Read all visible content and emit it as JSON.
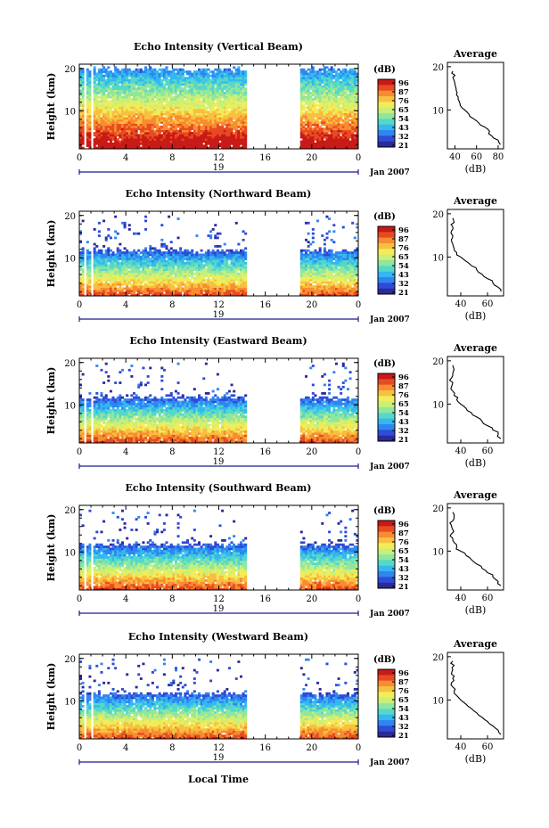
{
  "colorbar": {
    "unit": "(dB)",
    "ticks": [
      "96",
      "87",
      "76",
      "65",
      "54",
      "43",
      "32",
      "21"
    ],
    "colors": [
      "#2a2a9a",
      "#2f4bd8",
      "#2f86f0",
      "#33b8f0",
      "#55d8c8",
      "#8fe6a0",
      "#c8ef78",
      "#f2ec58",
      "#f8c040",
      "#f88c30",
      "#e84a22",
      "#c81a16"
    ]
  },
  "common": {
    "height_label": "Height (km)",
    "x_ticks": [
      "0",
      "4",
      "8",
      "12",
      "16",
      "20",
      "0"
    ],
    "day_label": "19",
    "date_label": "Jan 2007",
    "avg_title": "Average",
    "avg_xlabel": "(dB)",
    "avg_y_ticks": [
      "20",
      "10"
    ],
    "local_time_label": "Local Time"
  },
  "chart_data": [
    {
      "type": "heatmap",
      "title": "Echo Intensity (Vertical Beam)",
      "ylabel": "Height (km)",
      "xlabel": "",
      "x_ticks": [
        "0",
        "4",
        "8",
        "12",
        "16",
        "20",
        "0"
      ],
      "y_ticks": [
        "20",
        "10"
      ],
      "ylim": [
        1,
        21
      ],
      "xlim": [
        0,
        24
      ],
      "data_gaps_hours": [
        [
          0.4,
          0.6
        ],
        [
          1.0,
          1.2
        ],
        [
          14.4,
          19.0
        ]
      ],
      "echo_top_km": 20,
      "profile": {
        "title": "Average",
        "xlabel": "(dB)",
        "x_ticks": [
          "40",
          "60",
          "80"
        ],
        "xlim": [
          33,
          85
        ],
        "height_km": [
          2,
          3,
          4,
          5,
          6,
          7,
          8,
          9,
          10,
          11,
          12,
          13,
          14,
          15,
          16,
          17,
          18,
          19
        ],
        "values_db": [
          82,
          80,
          74,
          72,
          68,
          62,
          57,
          53,
          49,
          45,
          44,
          43,
          42,
          41,
          40,
          39,
          40,
          38
        ]
      }
    },
    {
      "type": "heatmap",
      "title": "Echo Intensity (Northward Beam)",
      "ylabel": "Height (km)",
      "xlabel": "",
      "x_ticks": [
        "0",
        "4",
        "8",
        "12",
        "16",
        "20",
        "0"
      ],
      "y_ticks": [
        "20",
        "10"
      ],
      "ylim": [
        1,
        21
      ],
      "xlim": [
        0,
        24
      ],
      "data_gaps_hours": [
        [
          0.4,
          0.6
        ],
        [
          1.0,
          1.2
        ],
        [
          14.4,
          19.0
        ]
      ],
      "echo_top_km": 12,
      "profile": {
        "title": "Average",
        "xlabel": "(dB)",
        "x_ticks": [
          "40",
          "60"
        ],
        "xlim": [
          30,
          72
        ],
        "height_km": [
          2,
          3,
          4,
          5,
          6,
          7,
          8,
          9,
          10,
          11,
          12,
          13,
          14,
          15,
          16,
          17,
          18,
          19
        ],
        "values_db": [
          70,
          68,
          64,
          60,
          56,
          52,
          48,
          44,
          40,
          37,
          35,
          34,
          33,
          34,
          33,
          34,
          35,
          34
        ]
      }
    },
    {
      "type": "heatmap",
      "title": "Echo Intensity (Eastward Beam)",
      "ylabel": "Height (km)",
      "xlabel": "",
      "x_ticks": [
        "0",
        "4",
        "8",
        "12",
        "16",
        "20",
        "0"
      ],
      "y_ticks": [
        "20",
        "10"
      ],
      "ylim": [
        1,
        21
      ],
      "xlim": [
        0,
        24
      ],
      "data_gaps_hours": [
        [
          0.4,
          0.6
        ],
        [
          1.0,
          1.2
        ],
        [
          14.4,
          19.0
        ]
      ],
      "echo_top_km": 12,
      "profile": {
        "title": "Average",
        "xlabel": "(dB)",
        "x_ticks": [
          "40",
          "60"
        ],
        "xlim": [
          30,
          72
        ],
        "height_km": [
          2,
          3,
          4,
          5,
          6,
          7,
          8,
          9,
          10,
          11,
          12,
          13,
          14,
          15,
          16,
          17,
          18,
          19
        ],
        "values_db": [
          70,
          68,
          64,
          60,
          56,
          52,
          48,
          44,
          40,
          37,
          35,
          34,
          33,
          34,
          33,
          34,
          35,
          34
        ]
      }
    },
    {
      "type": "heatmap",
      "title": "Echo Intensity (Southward Beam)",
      "ylabel": "Height (km)",
      "xlabel": "",
      "x_ticks": [
        "0",
        "4",
        "8",
        "12",
        "16",
        "20",
        "0"
      ],
      "y_ticks": [
        "20",
        "10"
      ],
      "ylim": [
        1,
        21
      ],
      "xlim": [
        0,
        24
      ],
      "data_gaps_hours": [
        [
          0.4,
          0.6
        ],
        [
          1.0,
          1.2
        ],
        [
          14.4,
          19.0
        ]
      ],
      "echo_top_km": 12,
      "profile": {
        "title": "Average",
        "xlabel": "(dB)",
        "x_ticks": [
          "40",
          "60"
        ],
        "xlim": [
          30,
          72
        ],
        "height_km": [
          2,
          3,
          4,
          5,
          6,
          7,
          8,
          9,
          10,
          11,
          12,
          13,
          14,
          15,
          16,
          17,
          18,
          19
        ],
        "values_db": [
          70,
          68,
          64,
          60,
          56,
          52,
          48,
          44,
          40,
          37,
          35,
          34,
          33,
          34,
          33,
          34,
          35,
          34
        ]
      }
    },
    {
      "type": "heatmap",
      "title": "Echo Intensity (Westward Beam)",
      "ylabel": "Height (km)",
      "xlabel": "Local Time",
      "x_ticks": [
        "0",
        "4",
        "8",
        "12",
        "16",
        "20",
        "0"
      ],
      "y_ticks": [
        "20",
        "10"
      ],
      "ylim": [
        1,
        21
      ],
      "xlim": [
        0,
        24
      ],
      "data_gaps_hours": [
        [
          0.4,
          0.6
        ],
        [
          1.0,
          1.2
        ],
        [
          14.4,
          19.0
        ]
      ],
      "echo_top_km": 12,
      "profile": {
        "title": "Average",
        "xlabel": "(dB)",
        "x_ticks": [
          "40",
          "60"
        ],
        "xlim": [
          30,
          72
        ],
        "height_km": [
          2,
          3,
          4,
          5,
          6,
          7,
          8,
          9,
          10,
          11,
          12,
          13,
          14,
          15,
          16,
          17,
          18,
          19
        ],
        "values_db": [
          70,
          68,
          64,
          60,
          56,
          52,
          48,
          44,
          40,
          37,
          35,
          34,
          33,
          34,
          33,
          34,
          35,
          34
        ]
      }
    }
  ]
}
